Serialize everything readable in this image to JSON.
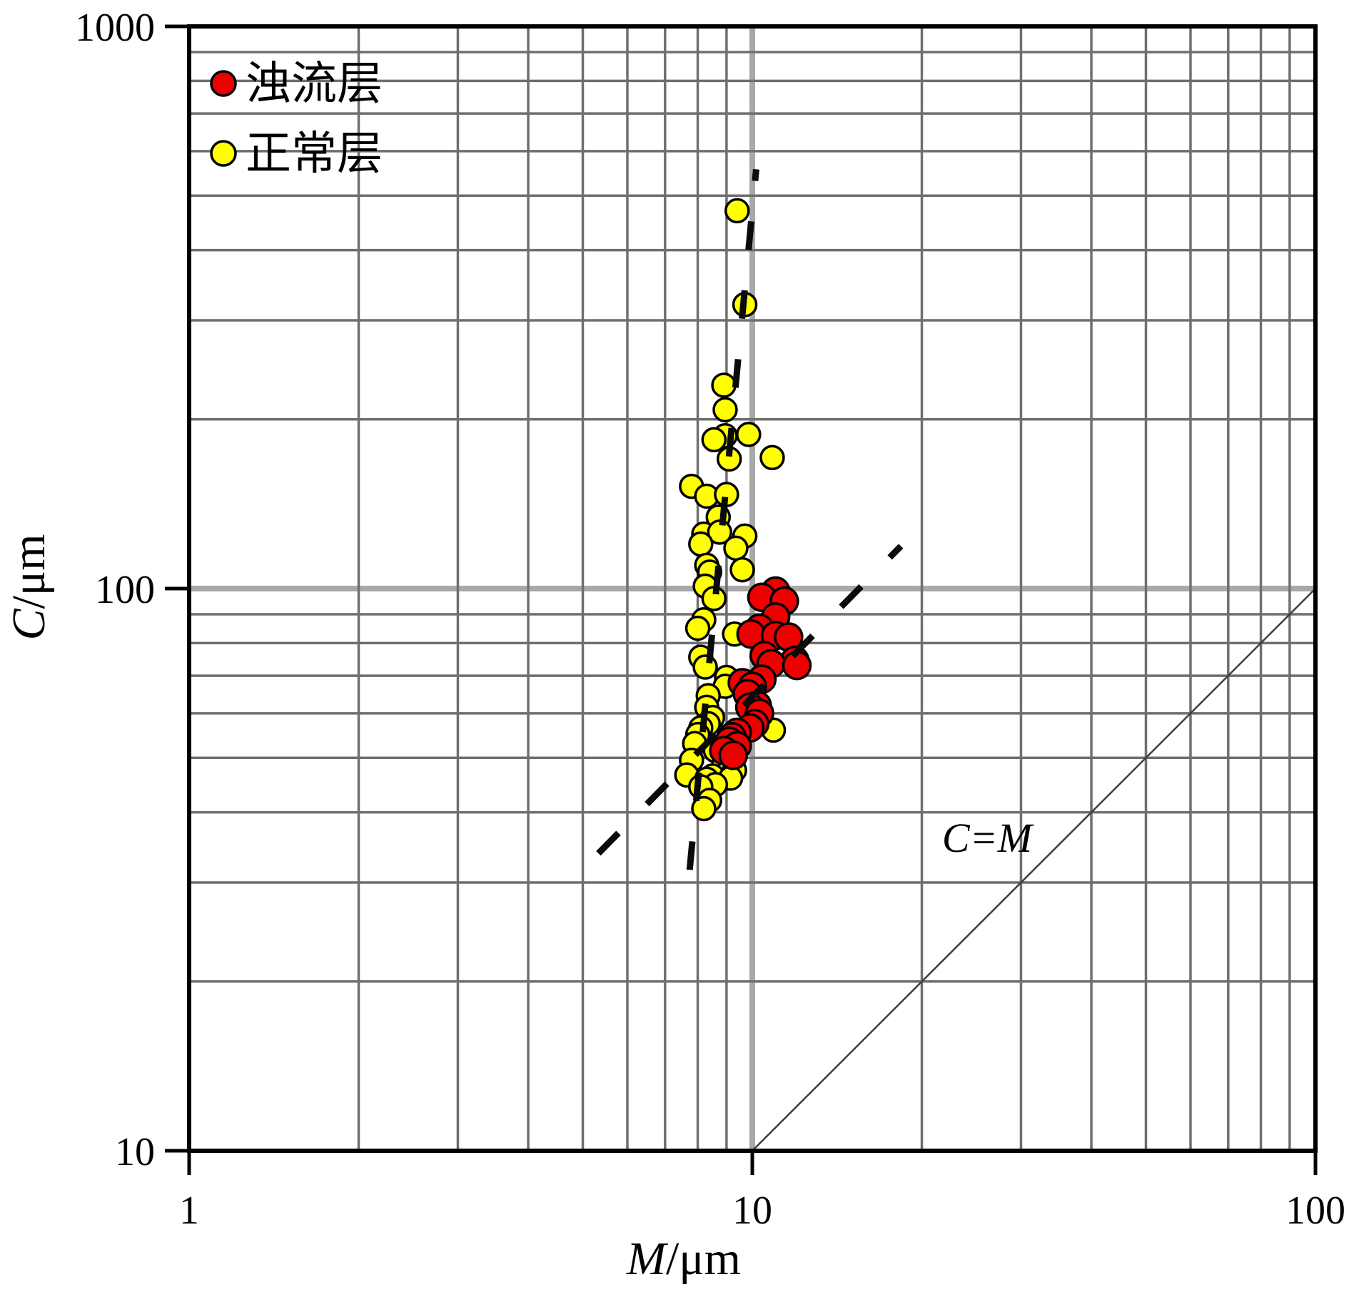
{
  "chart_data": {
    "type": "scatter",
    "title": "",
    "x_axis": {
      "label_var": "M",
      "label_unit": "/μm",
      "scale": "log",
      "min": 1,
      "max": 100,
      "ticks": [
        {
          "value": 1,
          "label": "1"
        },
        {
          "value": 10,
          "label": "10"
        },
        {
          "value": 100,
          "label": "100"
        }
      ]
    },
    "y_axis": {
      "label_var": "C",
      "label_unit": "/μm",
      "scale": "log",
      "min": 10,
      "max": 1000,
      "ticks": [
        {
          "value": 10,
          "label": "10"
        },
        {
          "value": 100,
          "label": "100"
        },
        {
          "value": 1000,
          "label": "1000"
        }
      ]
    },
    "grid": {
      "style": "log minor + major decades",
      "minor_color": "#6f6f6f",
      "major_color": "#a8a8a8"
    },
    "legend": {
      "position": "top-left-inside",
      "items": [
        {
          "label": "浊流层",
          "color": "#ee0000",
          "series": "turbidite-layer"
        },
        {
          "label": "正常层",
          "color": "#ffff00",
          "series": "normal-layer"
        }
      ]
    },
    "series": [
      {
        "name": "正常层",
        "marker": "circle",
        "fill": "#ffff00",
        "outline": "#000000",
        "radius": 16,
        "points": [
          [
            9.4,
            470
          ],
          [
            9.7,
            320
          ],
          [
            8.9,
            230
          ],
          [
            8.95,
            208
          ],
          [
            8.95,
            187
          ],
          [
            8.55,
            184
          ],
          [
            9.85,
            188
          ],
          [
            9.1,
            170
          ],
          [
            10.85,
            171
          ],
          [
            7.8,
            152
          ],
          [
            8.3,
            146
          ],
          [
            9.0,
            147
          ],
          [
            8.7,
            134
          ],
          [
            8.2,
            125
          ],
          [
            8.75,
            126
          ],
          [
            9.7,
            124
          ],
          [
            8.1,
            120
          ],
          [
            9.35,
            118
          ],
          [
            8.3,
            110
          ],
          [
            9.6,
            108
          ],
          [
            8.4,
            107
          ],
          [
            8.25,
            101
          ],
          [
            8.55,
            96
          ],
          [
            8.2,
            88
          ],
          [
            8.0,
            85
          ],
          [
            9.3,
            83
          ],
          [
            8.1,
            75.5
          ],
          [
            8.25,
            72.5
          ],
          [
            9.0,
            69.5
          ],
          [
            8.95,
            67
          ],
          [
            8.35,
            64.5
          ],
          [
            8.3,
            61.5
          ],
          [
            8.5,
            59
          ],
          [
            8.35,
            57.5
          ],
          [
            8.1,
            56.5
          ],
          [
            8.0,
            55
          ],
          [
            7.9,
            53
          ],
          [
            10.9,
            56
          ],
          [
            8.6,
            51.5
          ],
          [
            7.8,
            49.5
          ],
          [
            8.9,
            48.5
          ],
          [
            9.1,
            47.5
          ],
          [
            7.65,
            46.6
          ],
          [
            9.3,
            47.5
          ],
          [
            8.5,
            46.4
          ],
          [
            9.15,
            46
          ],
          [
            8.3,
            45.8
          ],
          [
            8.6,
            44.8
          ],
          [
            8.1,
            44.4
          ],
          [
            8.4,
            42
          ],
          [
            8.2,
            40.6
          ]
        ]
      },
      {
        "name": "浊流层",
        "marker": "circle",
        "fill": "#ee0000",
        "outline": "#000000",
        "radius": 19,
        "points": [
          [
            11.0,
            99
          ],
          [
            10.4,
            96.5
          ],
          [
            11.4,
            95
          ],
          [
            11.0,
            89
          ],
          [
            10.3,
            85
          ],
          [
            9.95,
            83
          ],
          [
            11.0,
            82.5
          ],
          [
            11.6,
            82
          ],
          [
            10.5,
            76
          ],
          [
            11.9,
            74.5
          ],
          [
            10.8,
            73.5
          ],
          [
            12.0,
            73
          ],
          [
            10.4,
            69
          ],
          [
            9.6,
            68
          ],
          [
            10.0,
            67
          ],
          [
            9.8,
            65
          ],
          [
            10.2,
            62
          ],
          [
            9.9,
            61.5
          ],
          [
            10.3,
            60
          ],
          [
            10.1,
            57.5
          ],
          [
            9.9,
            56.5
          ],
          [
            9.4,
            55.5
          ],
          [
            9.2,
            54.5
          ],
          [
            9.1,
            53.5
          ],
          [
            9.4,
            52.5
          ],
          [
            8.9,
            51.5
          ],
          [
            9.25,
            50.5
          ]
        ]
      }
    ],
    "reference_lines": [
      {
        "name": "steep-dashed-trend",
        "style": "dashed",
        "from": [
          7.74,
          31.6
        ],
        "to": [
          10.16,
          557
        ]
      },
      {
        "name": "diagonal-dashed-trend",
        "style": "dashed",
        "from": [
          5.33,
          33.8
        ],
        "to": [
          18.36,
          119
        ]
      },
      {
        "name": "c-equals-m-reference",
        "style": "solid",
        "from": [
          10,
          10
        ],
        "to": [
          100,
          100
        ]
      }
    ],
    "annotations": [
      {
        "text": "C=M",
        "x": 26,
        "y": 36.5,
        "italic": true
      }
    ]
  }
}
